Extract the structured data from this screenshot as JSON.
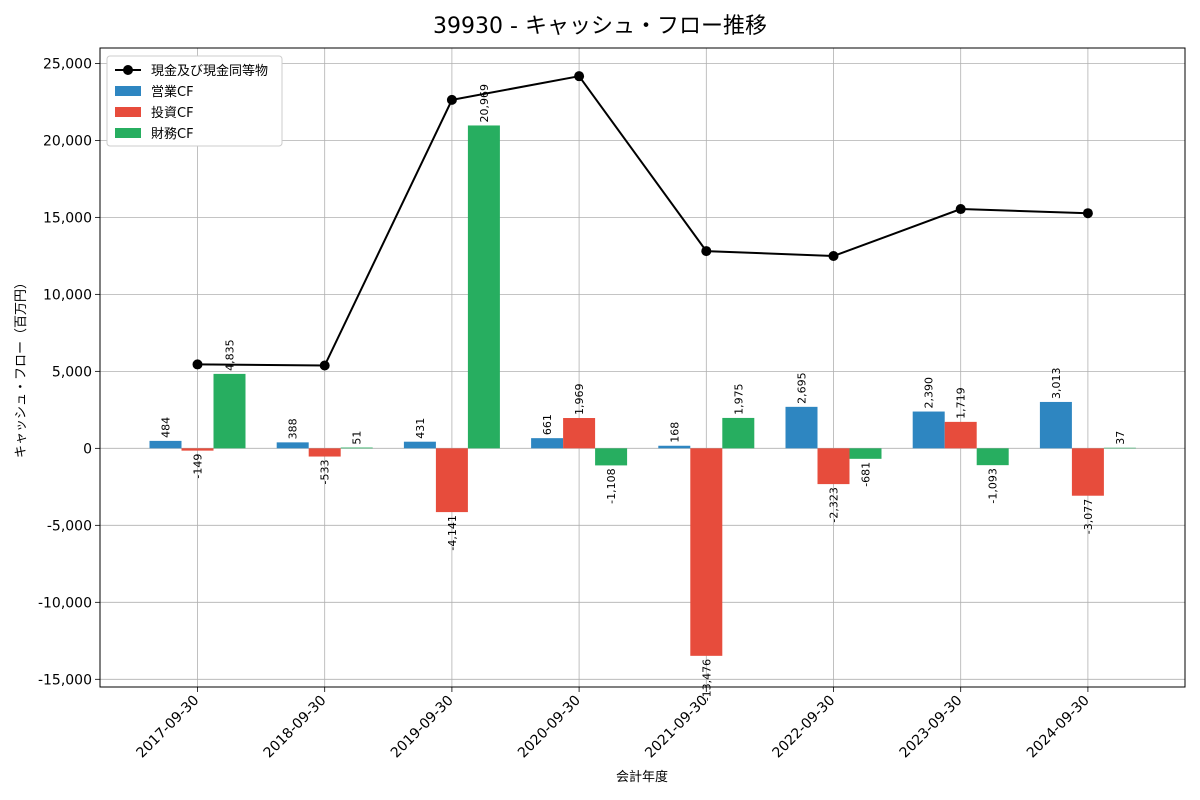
{
  "chart_data": {
    "type": "bar",
    "title": "39930 - キャッシュ・フロー推移",
    "xlabel": "会計年度",
    "ylabel": "キャッシュ・フロー（百万円）",
    "ylim": [
      -15500,
      26000
    ],
    "yticks": [
      -15000,
      -10000,
      -5000,
      0,
      5000,
      10000,
      15000,
      20000,
      25000
    ],
    "ytick_labels": [
      "-15,000",
      "-10,000",
      "-5,000",
      "0",
      "5,000",
      "10,000",
      "15,000",
      "20,000",
      "25,000"
    ],
    "grid": true,
    "legend_position": "top-left",
    "categories": [
      "2017-09-30",
      "2018-09-30",
      "2019-09-30",
      "2020-09-30",
      "2021-09-30",
      "2022-09-30",
      "2023-09-30",
      "2024-09-30"
    ],
    "series": [
      {
        "name": "営業CF",
        "type": "bar",
        "color": "#2E86C1",
        "values": [
          484,
          388,
          431,
          661,
          168,
          2695,
          2390,
          3013
        ],
        "labels": [
          "484",
          "388",
          "431",
          "661",
          "168",
          "2,695",
          "2,390",
          "3,013"
        ]
      },
      {
        "name": "投資CF",
        "type": "bar",
        "color": "#E74C3C",
        "values": [
          -149,
          -533,
          -4141,
          1969,
          -13476,
          -2323,
          1719,
          -3077
        ],
        "labels": [
          "-149",
          "-533",
          "-4,141",
          "1,969",
          "-13,476",
          "-2,323",
          "1,719",
          "-3,077"
        ]
      },
      {
        "name": "財務CF",
        "type": "bar",
        "color": "#27AE60",
        "values": [
          4835,
          51,
          20969,
          -1108,
          1975,
          -681,
          -1093,
          37
        ],
        "labels": [
          "4,835",
          "51",
          "20,969",
          "-1,108",
          "1,975",
          "-681",
          "-1,093",
          "37"
        ]
      }
    ],
    "line": {
      "name": "現金及び現金同等物",
      "type": "line",
      "color": "#000000",
      "values": [
        5450,
        5380,
        22630,
        24170,
        12810,
        12490,
        15540,
        15270
      ]
    }
  }
}
